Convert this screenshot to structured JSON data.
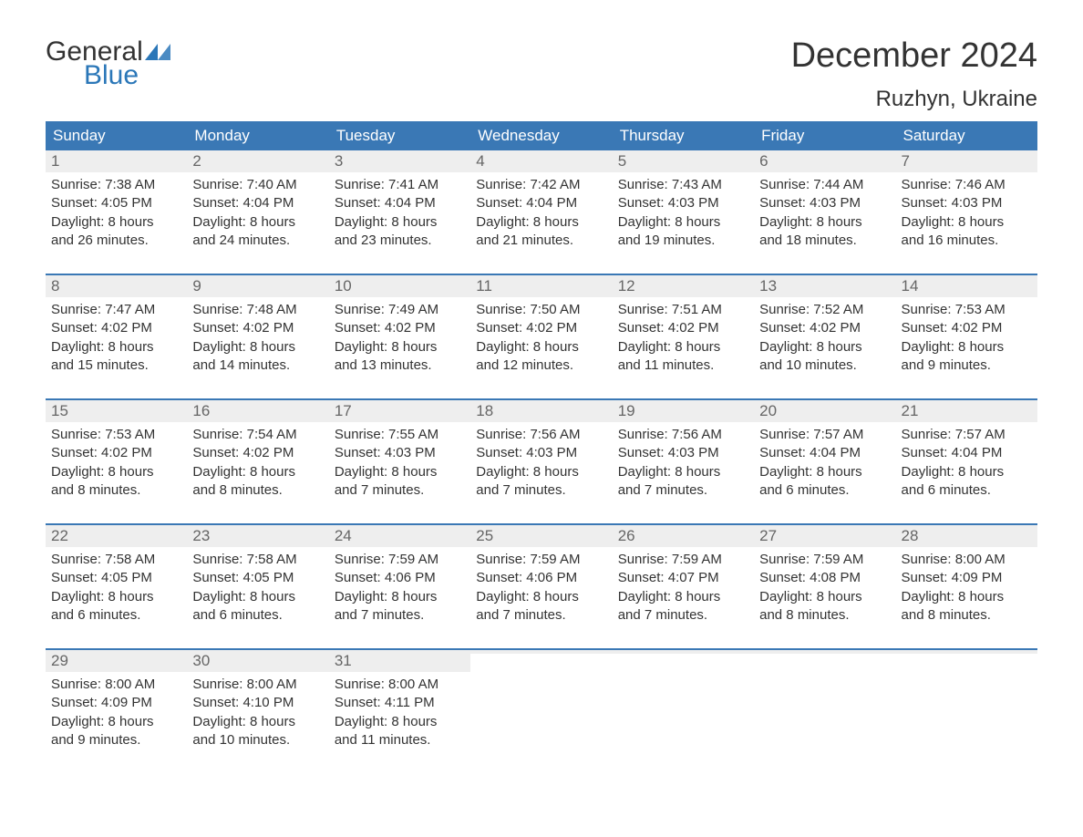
{
  "brand": {
    "line1": "General",
    "line2": "Blue",
    "flag_color": "#2b77b8"
  },
  "title": "December 2024",
  "location": "Ruzhyn, Ukraine",
  "colors": {
    "header_bg": "#3a78b5",
    "header_text": "#ffffff",
    "daynum_bg": "#eeeeee",
    "daynum_text": "#666666",
    "body_text": "#333333",
    "week_border": "#3a78b5"
  },
  "weekdays": [
    "Sunday",
    "Monday",
    "Tuesday",
    "Wednesday",
    "Thursday",
    "Friday",
    "Saturday"
  ],
  "weeks": [
    [
      {
        "n": "1",
        "sunrise": "Sunrise: 7:38 AM",
        "sunset": "Sunset: 4:05 PM",
        "d1": "Daylight: 8 hours",
        "d2": "and 26 minutes."
      },
      {
        "n": "2",
        "sunrise": "Sunrise: 7:40 AM",
        "sunset": "Sunset: 4:04 PM",
        "d1": "Daylight: 8 hours",
        "d2": "and 24 minutes."
      },
      {
        "n": "3",
        "sunrise": "Sunrise: 7:41 AM",
        "sunset": "Sunset: 4:04 PM",
        "d1": "Daylight: 8 hours",
        "d2": "and 23 minutes."
      },
      {
        "n": "4",
        "sunrise": "Sunrise: 7:42 AM",
        "sunset": "Sunset: 4:04 PM",
        "d1": "Daylight: 8 hours",
        "d2": "and 21 minutes."
      },
      {
        "n": "5",
        "sunrise": "Sunrise: 7:43 AM",
        "sunset": "Sunset: 4:03 PM",
        "d1": "Daylight: 8 hours",
        "d2": "and 19 minutes."
      },
      {
        "n": "6",
        "sunrise": "Sunrise: 7:44 AM",
        "sunset": "Sunset: 4:03 PM",
        "d1": "Daylight: 8 hours",
        "d2": "and 18 minutes."
      },
      {
        "n": "7",
        "sunrise": "Sunrise: 7:46 AM",
        "sunset": "Sunset: 4:03 PM",
        "d1": "Daylight: 8 hours",
        "d2": "and 16 minutes."
      }
    ],
    [
      {
        "n": "8",
        "sunrise": "Sunrise: 7:47 AM",
        "sunset": "Sunset: 4:02 PM",
        "d1": "Daylight: 8 hours",
        "d2": "and 15 minutes."
      },
      {
        "n": "9",
        "sunrise": "Sunrise: 7:48 AM",
        "sunset": "Sunset: 4:02 PM",
        "d1": "Daylight: 8 hours",
        "d2": "and 14 minutes."
      },
      {
        "n": "10",
        "sunrise": "Sunrise: 7:49 AM",
        "sunset": "Sunset: 4:02 PM",
        "d1": "Daylight: 8 hours",
        "d2": "and 13 minutes."
      },
      {
        "n": "11",
        "sunrise": "Sunrise: 7:50 AM",
        "sunset": "Sunset: 4:02 PM",
        "d1": "Daylight: 8 hours",
        "d2": "and 12 minutes."
      },
      {
        "n": "12",
        "sunrise": "Sunrise: 7:51 AM",
        "sunset": "Sunset: 4:02 PM",
        "d1": "Daylight: 8 hours",
        "d2": "and 11 minutes."
      },
      {
        "n": "13",
        "sunrise": "Sunrise: 7:52 AM",
        "sunset": "Sunset: 4:02 PM",
        "d1": "Daylight: 8 hours",
        "d2": "and 10 minutes."
      },
      {
        "n": "14",
        "sunrise": "Sunrise: 7:53 AM",
        "sunset": "Sunset: 4:02 PM",
        "d1": "Daylight: 8 hours",
        "d2": "and 9 minutes."
      }
    ],
    [
      {
        "n": "15",
        "sunrise": "Sunrise: 7:53 AM",
        "sunset": "Sunset: 4:02 PM",
        "d1": "Daylight: 8 hours",
        "d2": "and 8 minutes."
      },
      {
        "n": "16",
        "sunrise": "Sunrise: 7:54 AM",
        "sunset": "Sunset: 4:02 PM",
        "d1": "Daylight: 8 hours",
        "d2": "and 8 minutes."
      },
      {
        "n": "17",
        "sunrise": "Sunrise: 7:55 AM",
        "sunset": "Sunset: 4:03 PM",
        "d1": "Daylight: 8 hours",
        "d2": "and 7 minutes."
      },
      {
        "n": "18",
        "sunrise": "Sunrise: 7:56 AM",
        "sunset": "Sunset: 4:03 PM",
        "d1": "Daylight: 8 hours",
        "d2": "and 7 minutes."
      },
      {
        "n": "19",
        "sunrise": "Sunrise: 7:56 AM",
        "sunset": "Sunset: 4:03 PM",
        "d1": "Daylight: 8 hours",
        "d2": "and 7 minutes."
      },
      {
        "n": "20",
        "sunrise": "Sunrise: 7:57 AM",
        "sunset": "Sunset: 4:04 PM",
        "d1": "Daylight: 8 hours",
        "d2": "and 6 minutes."
      },
      {
        "n": "21",
        "sunrise": "Sunrise: 7:57 AM",
        "sunset": "Sunset: 4:04 PM",
        "d1": "Daylight: 8 hours",
        "d2": "and 6 minutes."
      }
    ],
    [
      {
        "n": "22",
        "sunrise": "Sunrise: 7:58 AM",
        "sunset": "Sunset: 4:05 PM",
        "d1": "Daylight: 8 hours",
        "d2": "and 6 minutes."
      },
      {
        "n": "23",
        "sunrise": "Sunrise: 7:58 AM",
        "sunset": "Sunset: 4:05 PM",
        "d1": "Daylight: 8 hours",
        "d2": "and 6 minutes."
      },
      {
        "n": "24",
        "sunrise": "Sunrise: 7:59 AM",
        "sunset": "Sunset: 4:06 PM",
        "d1": "Daylight: 8 hours",
        "d2": "and 7 minutes."
      },
      {
        "n": "25",
        "sunrise": "Sunrise: 7:59 AM",
        "sunset": "Sunset: 4:06 PM",
        "d1": "Daylight: 8 hours",
        "d2": "and 7 minutes."
      },
      {
        "n": "26",
        "sunrise": "Sunrise: 7:59 AM",
        "sunset": "Sunset: 4:07 PM",
        "d1": "Daylight: 8 hours",
        "d2": "and 7 minutes."
      },
      {
        "n": "27",
        "sunrise": "Sunrise: 7:59 AM",
        "sunset": "Sunset: 4:08 PM",
        "d1": "Daylight: 8 hours",
        "d2": "and 8 minutes."
      },
      {
        "n": "28",
        "sunrise": "Sunrise: 8:00 AM",
        "sunset": "Sunset: 4:09 PM",
        "d1": "Daylight: 8 hours",
        "d2": "and 8 minutes."
      }
    ],
    [
      {
        "n": "29",
        "sunrise": "Sunrise: 8:00 AM",
        "sunset": "Sunset: 4:09 PM",
        "d1": "Daylight: 8 hours",
        "d2": "and 9 minutes."
      },
      {
        "n": "30",
        "sunrise": "Sunrise: 8:00 AM",
        "sunset": "Sunset: 4:10 PM",
        "d1": "Daylight: 8 hours",
        "d2": "and 10 minutes."
      },
      {
        "n": "31",
        "sunrise": "Sunrise: 8:00 AM",
        "sunset": "Sunset: 4:11 PM",
        "d1": "Daylight: 8 hours",
        "d2": "and 11 minutes."
      },
      {
        "empty": true
      },
      {
        "empty": true
      },
      {
        "empty": true
      },
      {
        "empty": true
      }
    ]
  ]
}
